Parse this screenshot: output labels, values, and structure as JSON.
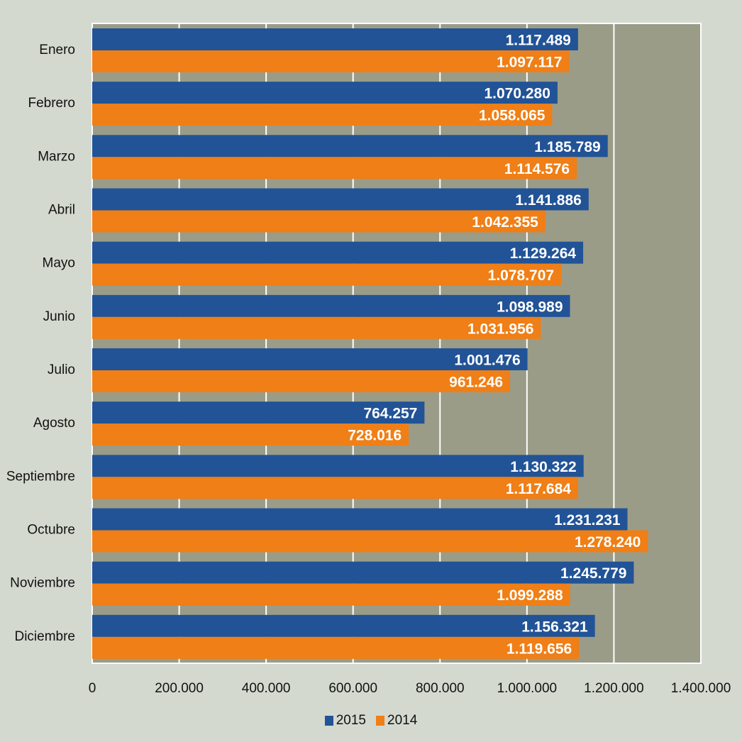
{
  "chart_data": {
    "type": "bar",
    "orientation": "horizontal",
    "title": "",
    "xlabel": "",
    "ylabel": "",
    "categories": [
      "Enero",
      "Febrero",
      "Marzo",
      "Abril",
      "Mayo",
      "Junio",
      "Julio",
      "Agosto",
      "Septiembre",
      "Octubre",
      "Noviembre",
      "Diciembre"
    ],
    "series": [
      {
        "name": "2015",
        "color": "#215396",
        "values": [
          1117489,
          1070280,
          1185789,
          1141886,
          1129264,
          1098989,
          1001476,
          764257,
          1130322,
          1231231,
          1245779,
          1156321
        ],
        "labels": [
          "1.117.489",
          "1.070.280",
          "1.185.789",
          "1.141.886",
          "1.129.264",
          "1.098.989",
          "1.001.476",
          "764.257",
          "1.130.322",
          "1.231.231",
          "1.245.779",
          "1.156.321"
        ]
      },
      {
        "name": "2014",
        "color": "#ef7f16",
        "values": [
          1097117,
          1058065,
          1114576,
          1042355,
          1078707,
          1031956,
          961246,
          728016,
          1117684,
          1278240,
          1099288,
          1119656
        ],
        "labels": [
          "1.097.117",
          "1.058.065",
          "1.114.576",
          "1.042.355",
          "1.078.707",
          "1.031.956",
          "961.246",
          "728.016",
          "1.117.684",
          "1.278.240",
          "1.099.288",
          "1.119.656"
        ]
      }
    ],
    "xlim": [
      0,
      1400000
    ],
    "xticks": [
      0,
      200000,
      400000,
      600000,
      800000,
      1000000,
      1200000,
      1400000
    ],
    "xtick_labels": [
      "0",
      "200.000",
      "400.000",
      "600.000",
      "800.000",
      "1.000.000",
      "1.200.000",
      "1.400.000"
    ],
    "grid": true,
    "legend_position": "bottom-center",
    "colors": {
      "plot_bg": "#9a9c88",
      "page_bg": "#d4d9d0",
      "grid": "#ffffff"
    }
  },
  "legend": {
    "items": [
      {
        "label": "2015",
        "color": "#215396"
      },
      {
        "label": "2014",
        "color": "#ef7f16"
      }
    ]
  }
}
